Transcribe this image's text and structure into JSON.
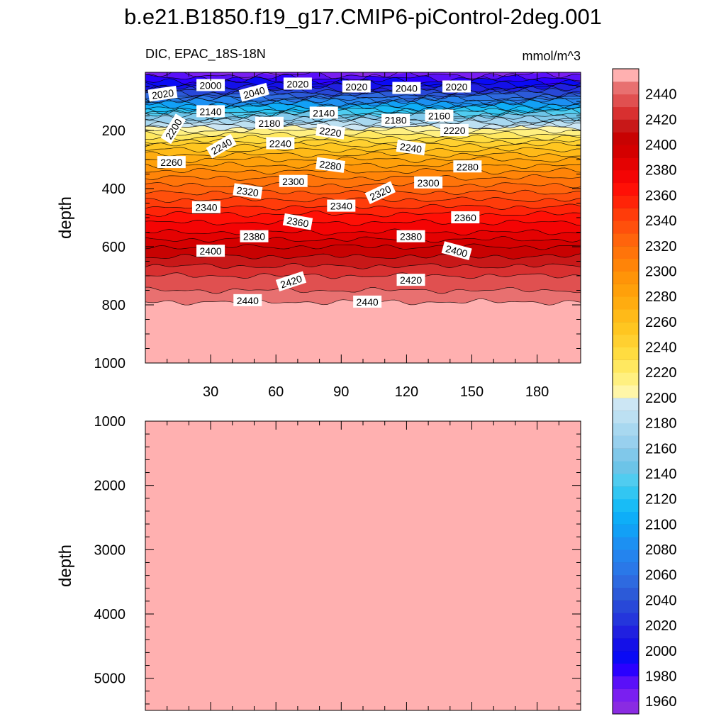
{
  "figure": {
    "title": "b.e21.B1850.f19_g17.CMIP6-piControl-2deg.001"
  },
  "colors": {
    "levels": [
      1960,
      1970,
      1980,
      1990,
      2000,
      2010,
      2020,
      2030,
      2040,
      2050,
      2060,
      2070,
      2080,
      2090,
      2100,
      2110,
      2120,
      2130,
      2140,
      2150,
      2160,
      2170,
      2180,
      2190,
      2200,
      2210,
      2220,
      2230,
      2240,
      2250,
      2260,
      2270,
      2280,
      2290,
      2300,
      2310,
      2320,
      2330,
      2340,
      2350,
      2360,
      2370,
      2380,
      2390,
      2400,
      2410,
      2420,
      2430,
      2440,
      2450
    ],
    "fills": [
      "#8a2be2",
      "#7a1ff0",
      "#5a10f8",
      "#2a00ff",
      "#0a0af5",
      "#1410e8",
      "#2020e0",
      "#2436dc",
      "#2848d8",
      "#2c5ad8",
      "#2e6ae0",
      "#2a78e8",
      "#2484ee",
      "#1c90f2",
      "#12a0f6",
      "#0eaef8",
      "#18bcf6",
      "#32c6f2",
      "#50ccf0",
      "#6cc4e8",
      "#80c8ea",
      "#98d0ee",
      "#a8d8f0",
      "#bce0f2",
      "#cce6f4",
      "#fff6a8",
      "#fff080",
      "#ffe860",
      "#ffdc40",
      "#ffd030",
      "#ffc620",
      "#ffba18",
      "#ffac10",
      "#ffa00a",
      "#ff9408",
      "#ff8408",
      "#ff740a",
      "#ff640c",
      "#ff500c",
      "#ff3c0a",
      "#ff2408",
      "#ff1006",
      "#f40404",
      "#e40202",
      "#d40000",
      "#c80202",
      "#c81818",
      "#d83030",
      "#e05050",
      "#e87070",
      "#ffb0b0"
    ],
    "upper_fill": "#ffb0b0"
  },
  "ui": {
    "upper_panel_name": "upper-panel-0-1000m",
    "lower_panel_name": "lower-panel-1000-5500m"
  },
  "chart_data": [
    {
      "type": "contour",
      "title": "",
      "subtitle_left": "DIC, EPAC_18S-18N",
      "subtitle_right": "mmol/m^3",
      "xlabel": "",
      "ylabel": "depth",
      "xlim": [
        0,
        200
      ],
      "ylim": [
        1000,
        0
      ],
      "xticks": [
        30,
        60,
        90,
        120,
        150,
        180
      ],
      "yticks": [
        200,
        400,
        600,
        800,
        1000
      ],
      "profile": {
        "depth": [
          0,
          50,
          100,
          150,
          190,
          200,
          250,
          300,
          350,
          400,
          450,
          500,
          550,
          600,
          650,
          700,
          750,
          790,
          800,
          1000
        ],
        "value": [
          1960,
          2010,
          2080,
          2150,
          2200,
          2210,
          2250,
          2280,
          2305,
          2325,
          2345,
          2365,
          2380,
          2400,
          2415,
          2430,
          2440,
          2450,
          2460,
          2460
        ]
      },
      "contour_labels": [
        {
          "text": "2020",
          "x": 8,
          "depth": 75,
          "angle": -8
        },
        {
          "text": "2000",
          "x": 30,
          "depth": 45,
          "angle": 0
        },
        {
          "text": "2040",
          "x": 50,
          "depth": 70,
          "angle": -15
        },
        {
          "text": "2020",
          "x": 70,
          "depth": 40,
          "angle": 0
        },
        {
          "text": "2020",
          "x": 97,
          "depth": 50,
          "angle": 0
        },
        {
          "text": "2040",
          "x": 120,
          "depth": 55,
          "angle": 0
        },
        {
          "text": "2020",
          "x": 143,
          "depth": 50,
          "angle": 0
        },
        {
          "text": "2140",
          "x": 30,
          "depth": 135,
          "angle": 0
        },
        {
          "text": "2180",
          "x": 57,
          "depth": 175,
          "angle": 0
        },
        {
          "text": "2140",
          "x": 82,
          "depth": 140,
          "angle": 0
        },
        {
          "text": "2180",
          "x": 115,
          "depth": 165,
          "angle": 0
        },
        {
          "text": "2160",
          "x": 135,
          "depth": 150,
          "angle": 0
        },
        {
          "text": "2200",
          "x": 13,
          "depth": 195,
          "angle": -58
        },
        {
          "text": "2220",
          "x": 85,
          "depth": 205,
          "angle": 8
        },
        {
          "text": "2220",
          "x": 142,
          "depth": 200,
          "angle": 0
        },
        {
          "text": "2240",
          "x": 35,
          "depth": 255,
          "angle": -30
        },
        {
          "text": "2240",
          "x": 62,
          "depth": 245,
          "angle": 0
        },
        {
          "text": "2240",
          "x": 122,
          "depth": 260,
          "angle": 8
        },
        {
          "text": "2260",
          "x": 12,
          "depth": 310,
          "angle": 0
        },
        {
          "text": "2280",
          "x": 85,
          "depth": 320,
          "angle": 8
        },
        {
          "text": "2280",
          "x": 148,
          "depth": 325,
          "angle": 0
        },
        {
          "text": "2300",
          "x": 68,
          "depth": 375,
          "angle": 0
        },
        {
          "text": "2300",
          "x": 130,
          "depth": 380,
          "angle": 0
        },
        {
          "text": "2320",
          "x": 47,
          "depth": 410,
          "angle": 8
        },
        {
          "text": "2320",
          "x": 108,
          "depth": 415,
          "angle": -25
        },
        {
          "text": "2340",
          "x": 28,
          "depth": 465,
          "angle": 0
        },
        {
          "text": "2340",
          "x": 90,
          "depth": 460,
          "angle": 0
        },
        {
          "text": "2360",
          "x": 70,
          "depth": 515,
          "angle": 10
        },
        {
          "text": "2360",
          "x": 147,
          "depth": 500,
          "angle": 0
        },
        {
          "text": "2380",
          "x": 50,
          "depth": 565,
          "angle": 0
        },
        {
          "text": "2380",
          "x": 122,
          "depth": 565,
          "angle": 0
        },
        {
          "text": "2400",
          "x": 30,
          "depth": 615,
          "angle": 0
        },
        {
          "text": "2400",
          "x": 143,
          "depth": 615,
          "angle": 15
        },
        {
          "text": "2420",
          "x": 67,
          "depth": 720,
          "angle": -18
        },
        {
          "text": "2420",
          "x": 122,
          "depth": 715,
          "angle": 0
        },
        {
          "text": "2440",
          "x": 47,
          "depth": 785,
          "angle": 0
        },
        {
          "text": "2440",
          "x": 102,
          "depth": 790,
          "angle": 0
        }
      ]
    },
    {
      "type": "contour",
      "title": "",
      "xlabel": "",
      "ylabel": "depth",
      "xlim": [
        0,
        200
      ],
      "ylim": [
        5500,
        1000
      ],
      "yticks": [
        1000,
        2000,
        3000,
        4000,
        5000
      ],
      "fill_value": 2460
    }
  ],
  "colorbar": {
    "labels": [
      2440,
      2420,
      2400,
      2380,
      2360,
      2340,
      2320,
      2300,
      2280,
      2260,
      2240,
      2220,
      2200,
      2180,
      2160,
      2140,
      2120,
      2100,
      2080,
      2060,
      2040,
      2020,
      2000,
      1980,
      1960
    ]
  }
}
